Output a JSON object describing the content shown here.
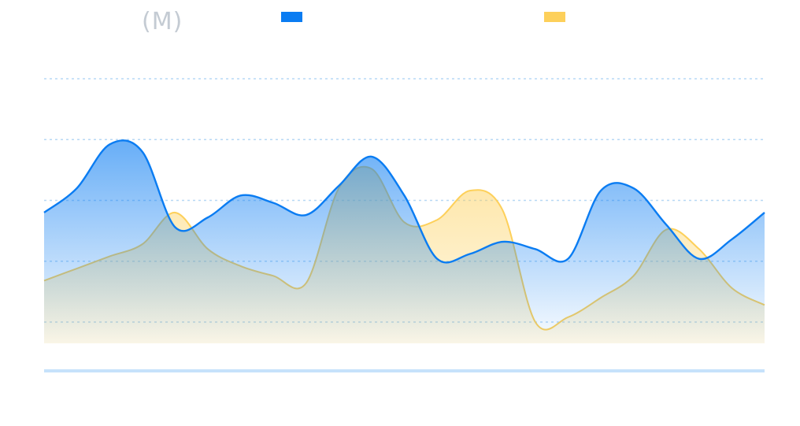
{
  "unit_label": "(M)",
  "colors": {
    "series_a": "#0a7cf2",
    "series_b": "#fdd05a",
    "grid": "#b7d8f5",
    "baseline": "#c6e2fb"
  },
  "chart_data": {
    "type": "area",
    "title": "",
    "xlabel": "",
    "ylabel": "(M)",
    "ylim": [
      0,
      100
    ],
    "grid": true,
    "legend": "top",
    "x": [
      0,
      1,
      2,
      3,
      4,
      5,
      6,
      7,
      8,
      9,
      10,
      11,
      12,
      13,
      14,
      15,
      16,
      17,
      18,
      19,
      20,
      21,
      22
    ],
    "series": [
      {
        "values": [
          45,
          55,
          73,
          70,
          39,
          43,
          52,
          49,
          44,
          56,
          68,
          52,
          26,
          28,
          33,
          30,
          26,
          54,
          55,
          40,
          26,
          34,
          45
        ]
      },
      {
        "values": [
          17,
          22,
          27,
          32,
          45,
          30,
          23,
          19,
          16,
          55,
          63,
          41,
          42,
          54,
          46,
          0,
          2,
          10,
          19,
          38,
          30,
          14,
          7
        ]
      }
    ]
  }
}
